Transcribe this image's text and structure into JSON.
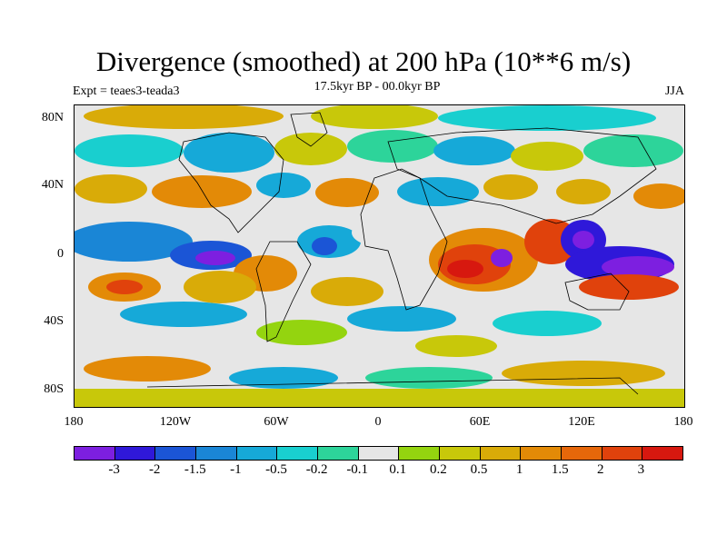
{
  "title": "Divergence (smoothed) at 200 hPa (10**6 m/s)",
  "subtitle": "17.5kyr BP - 00.0kyr BP",
  "experiment": "Expt = teaes3-teada3",
  "season": "JJA",
  "lat_labels": [
    "80N",
    "40N",
    "0",
    "40S",
    "80S"
  ],
  "lon_labels": [
    "180",
    "120W",
    "60W",
    "0",
    "60E",
    "120E",
    "180"
  ],
  "colorbar": {
    "colors": [
      "#7d1fe0",
      "#2f18d9",
      "#1b55d6",
      "#1a86d6",
      "#16a9d8",
      "#19cfcf",
      "#2dd49a",
      "#e6e6e6",
      "#94d40f",
      "#c8c80a",
      "#d9ab08",
      "#e38a07",
      "#e6670a",
      "#e0420c",
      "#d7180f"
    ],
    "labels": [
      "-3",
      "-2",
      "-1.5",
      "-1",
      "-0.5",
      "-0.2",
      "-0.1",
      "0.1",
      "0.2",
      "0.5",
      "1",
      "1.5",
      "2",
      "3"
    ]
  }
}
